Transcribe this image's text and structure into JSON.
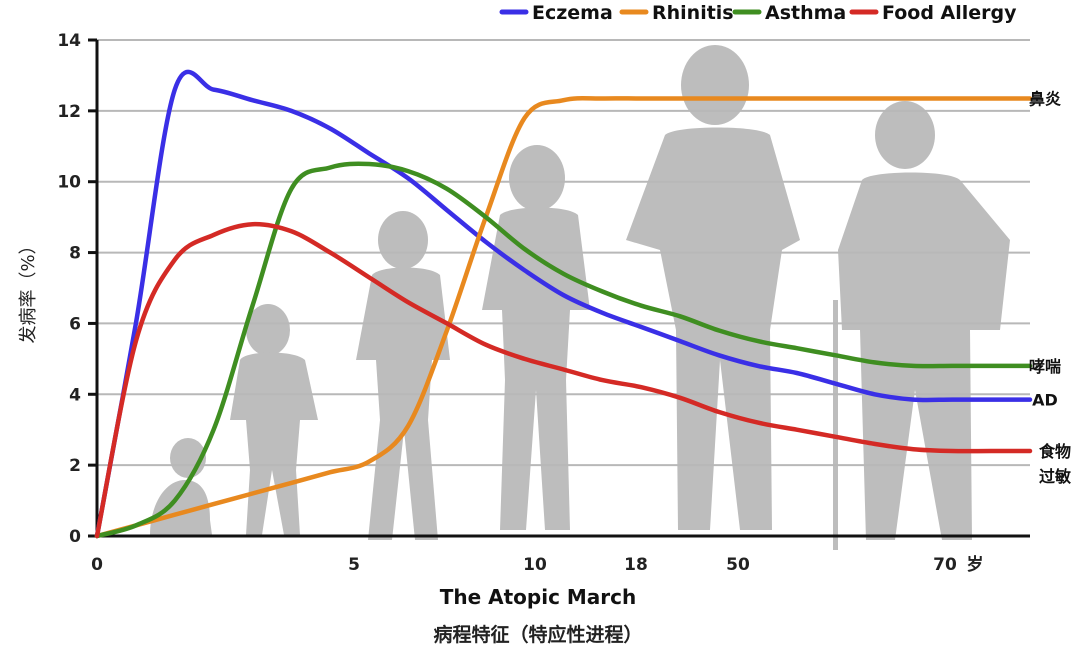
{
  "chart_data": {
    "type": "line",
    "title": "病程特征（特应性进程）",
    "subtitle": "The Atopic March",
    "ylabel": "发病率（%）",
    "xlabel_unit": "岁",
    "x_tick_labels": [
      "0",
      "5",
      "10",
      "18",
      "50",
      "70"
    ],
    "ylim": [
      0,
      14
    ],
    "y_ticks": [
      0,
      2,
      4,
      6,
      8,
      10,
      12,
      14
    ],
    "grid": true,
    "legend_position": "top-right",
    "x": [
      0,
      0.5,
      1,
      1.5,
      2,
      2.5,
      3,
      3.5,
      4,
      4.5,
      5,
      5.5,
      6,
      6.5,
      7,
      7.5,
      8,
      8.5,
      9,
      9.5,
      10,
      10.5,
      11,
      11.5,
      12
    ],
    "series": [
      {
        "name": "Eczema",
        "label": "AD",
        "color": "#3a2fe6",
        "values": [
          0,
          6,
          12.6,
          12.6,
          12.3,
          12.0,
          11.5,
          10.8,
          10.1,
          9.2,
          8.3,
          7.5,
          6.8,
          6.3,
          5.9,
          5.5,
          5.1,
          4.8,
          4.6,
          4.3,
          4.0,
          3.85,
          3.85,
          3.85,
          3.85
        ]
      },
      {
        "name": "Rhinitis",
        "label": "鼻炎",
        "color": "#e8891f",
        "values": [
          0,
          0.3,
          0.6,
          0.9,
          1.2,
          1.5,
          1.8,
          2.1,
          3.1,
          5.8,
          9.0,
          11.8,
          12.3,
          12.35,
          12.35,
          12.35,
          12.35,
          12.35,
          12.35,
          12.35,
          12.35,
          12.35,
          12.35,
          12.35,
          12.35
        ]
      },
      {
        "name": "Asthma",
        "label": "哮喘",
        "color": "#3f8e21",
        "values": [
          0,
          0.3,
          1.0,
          3.0,
          6.5,
          9.8,
          10.4,
          10.5,
          10.3,
          9.8,
          9.0,
          8.1,
          7.4,
          6.9,
          6.5,
          6.2,
          5.8,
          5.5,
          5.3,
          5.1,
          4.9,
          4.8,
          4.8,
          4.8,
          4.8
        ]
      },
      {
        "name": "Food Allergy",
        "label": "食物过敏",
        "color": "#d42a25",
        "values": [
          0,
          5.5,
          7.8,
          8.5,
          8.8,
          8.6,
          8.0,
          7.3,
          6.6,
          6.0,
          5.4,
          5.0,
          4.7,
          4.4,
          4.2,
          3.9,
          3.5,
          3.2,
          3.0,
          2.8,
          2.6,
          2.45,
          2.4,
          2.4,
          2.4
        ]
      }
    ]
  }
}
